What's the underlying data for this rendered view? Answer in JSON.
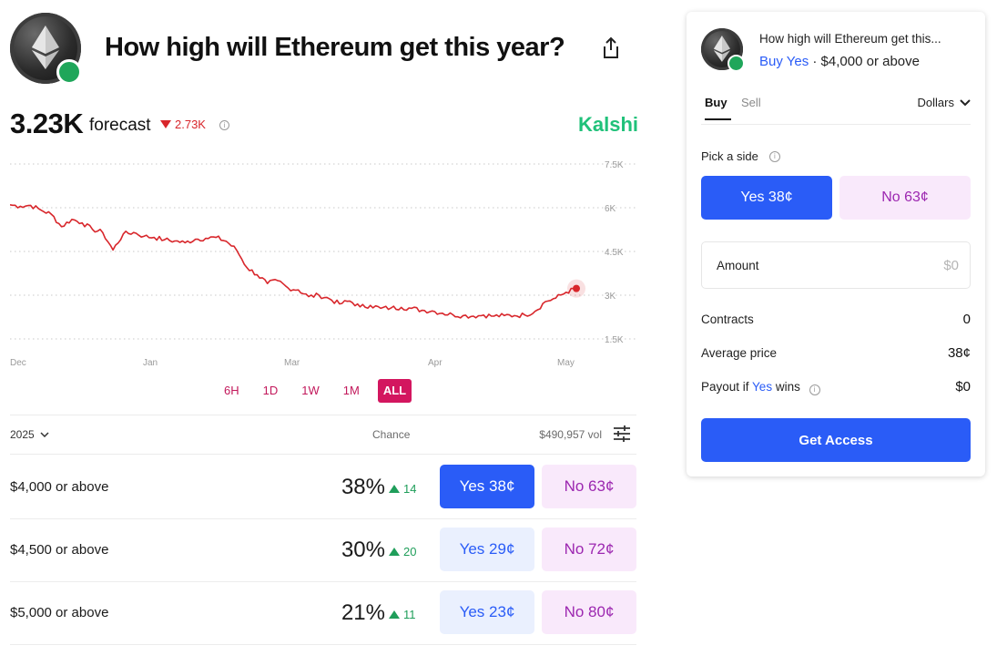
{
  "market": {
    "title": "How high will Ethereum get this year?",
    "icon": "ethereum-icon",
    "badge_icon": "trending-up-icon"
  },
  "forecast": {
    "value": "3.23K",
    "label": "forecast",
    "change": "2.73K",
    "change_direction": "down",
    "brand": "Kalshi"
  },
  "chart_data": {
    "type": "line",
    "x_tick_labels": [
      "Dec",
      "Jan",
      "Mar",
      "Apr",
      "May"
    ],
    "y_tick_labels": [
      "7.5K",
      "6K",
      "4.5K",
      "3K",
      "1.5K"
    ],
    "ylim": [
      1500,
      7500
    ],
    "grid": true,
    "line_color": "#d8262b",
    "series": [
      {
        "values": [
          6100,
          6050,
          6080,
          5920,
          5780,
          5350,
          5600,
          5480,
          5260,
          5150,
          4550,
          5100,
          5150,
          5020,
          4980,
          4900,
          4860,
          4800,
          4920,
          4950,
          4980,
          4850,
          4550,
          3950,
          3700,
          3400,
          3500,
          3250,
          3180,
          2950,
          3000,
          2880,
          2700,
          2800,
          2600,
          2650,
          2550,
          2560,
          2580,
          2550,
          2480,
          2460,
          2380,
          2330,
          2300,
          2280,
          2320,
          2280,
          2300,
          2300,
          2320,
          2450,
          2780,
          2900,
          3100,
          3230
        ]
      }
    ]
  },
  "ranges": {
    "items": [
      "6H",
      "1D",
      "1W",
      "1M",
      "ALL"
    ],
    "active": "ALL"
  },
  "outcomes": {
    "year": "2025",
    "chance_header": "Chance",
    "volume": "$490,957 vol",
    "rows": [
      {
        "label": "$4,000 or above",
        "chance": "38%",
        "delta": "14",
        "yes": "Yes 38¢",
        "no": "No 63¢"
      },
      {
        "label": "$4,500 or above",
        "chance": "30%",
        "delta": "20",
        "yes": "Yes 29¢",
        "no": "No 72¢"
      },
      {
        "label": "$5,000 or above",
        "chance": "21%",
        "delta": "11",
        "yes": "Yes 23¢",
        "no": "No 80¢"
      }
    ]
  },
  "order": {
    "title": "How high will Ethereum get this...",
    "side_text": "Buy Yes",
    "outcome_text": "· $4,000 or above",
    "tab_buy": "Buy",
    "tab_sell": "Sell",
    "currency": "Dollars",
    "pick_label": "Pick a side",
    "yes_button": "Yes 38¢",
    "no_button": "No 63¢",
    "amount_label": "Amount",
    "amount_placeholder": "$0",
    "contracts_label": "Contracts",
    "contracts_value": "0",
    "avg_price_label": "Average price",
    "avg_price_value": "38¢",
    "payout_prefix": "Payout if",
    "payout_yes": "Yes",
    "payout_suffix": "wins",
    "payout_value": "$0",
    "cta": "Get Access"
  },
  "colors": {
    "accent_blue": "#2a5cf7",
    "no_purple": "#9c27b0",
    "brand_green": "#20c17a",
    "range_pink": "#d3165f",
    "chart_red": "#d8262b"
  }
}
